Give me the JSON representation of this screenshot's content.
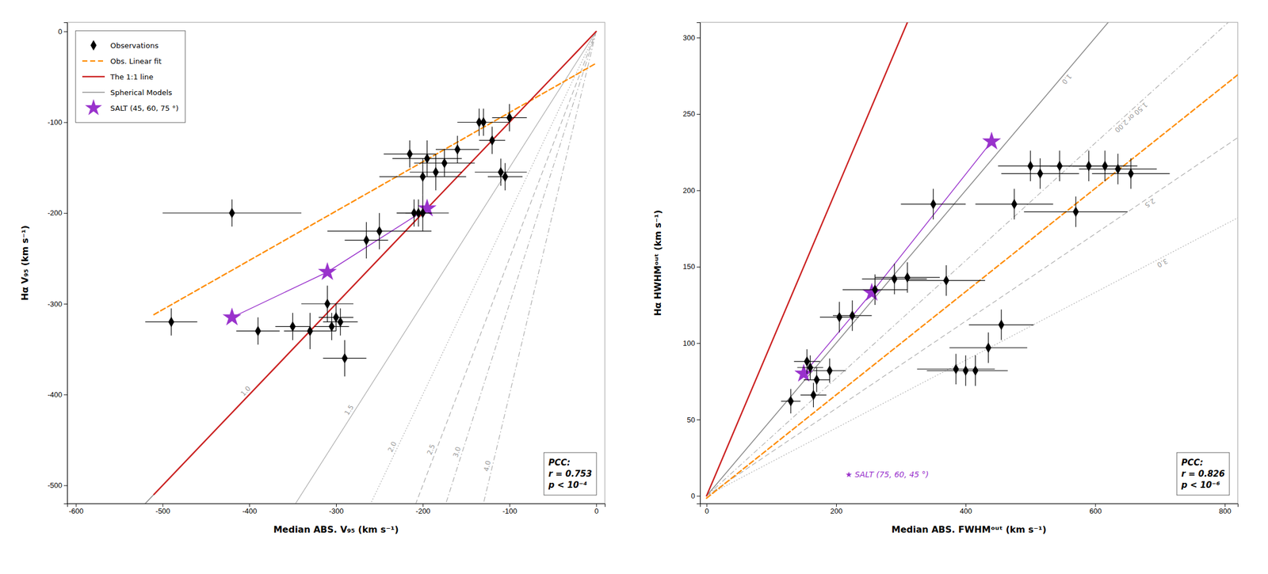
{
  "chart_data": [
    {
      "type": "scatter",
      "x_label": "Median ABS. V₉₅ (km s⁻¹)",
      "y_label": "Hα V₉₅ (km s⁻¹)",
      "xlim": [
        -610,
        10
      ],
      "ylim": [
        -520,
        10
      ],
      "xticks": [
        -600,
        -500,
        -400,
        -300,
        -200,
        -100,
        0
      ],
      "yticks": [
        -500,
        -400,
        -300,
        -200,
        -100,
        0
      ],
      "legend": "upper left",
      "series": [
        {
          "name": "Observations",
          "type": "scatter",
          "marker": "diamond",
          "color": "black",
          "x": [
            -490,
            -420,
            -390,
            -350,
            -330,
            -310,
            -305,
            -300,
            -295,
            -290,
            -265,
            -250,
            -215,
            -210,
            -205,
            -200,
            -200,
            -195,
            -185,
            -175,
            -160,
            -135,
            -130,
            -120,
            -110,
            -105,
            -100
          ],
          "values": [
            -320,
            -200,
            -330,
            -325,
            -330,
            -300,
            -325,
            -315,
            -320,
            -360,
            -230,
            -220,
            -135,
            -200,
            -200,
            -200,
            -160,
            -140,
            -155,
            -145,
            -130,
            -100,
            -100,
            -120,
            -155,
            -160,
            -95
          ],
          "x_error": [
            30,
            80,
            25,
            20,
            30,
            30,
            20,
            20,
            20,
            25,
            25,
            60,
            30,
            20,
            15,
            30,
            50,
            40,
            30,
            35,
            25,
            25,
            30,
            15,
            30,
            20,
            20
          ],
          "y_error": [
            15,
            15,
            15,
            15,
            20,
            20,
            15,
            15,
            15,
            20,
            20,
            20,
            15,
            15,
            15,
            20,
            20,
            20,
            20,
            15,
            15,
            15,
            15,
            15,
            15,
            15,
            15
          ]
        },
        {
          "name": "Obs. Linear fit",
          "type": "line",
          "line_style": "dashed",
          "color": "#FF8C00",
          "x": [
            -510,
            0
          ],
          "values": [
            -311.93,
            -35
          ]
        },
        {
          "name": "The 1:1 line",
          "type": "line",
          "line_style": "solid",
          "color": "#CC2222",
          "x": [
            -510,
            0
          ],
          "values": [
            -510,
            0
          ]
        },
        {
          "name": "Spherical Models",
          "type": "slope_lines",
          "lines": [
            {
              "slope": 1.0,
              "label": "1.0",
              "line_style": "solid",
              "color": "#888888",
              "label_x": -400
            },
            {
              "slope": 1.5,
              "label": "1.5",
              "line_style": "solid",
              "color": "#aaaaaa",
              "label_x": -280
            },
            {
              "slope": 2.0,
              "label": "2.0",
              "line_style": "dotted",
              "color": "#aaaaaa",
              "label_x": -230
            },
            {
              "slope": 2.5,
              "label": "2.5",
              "line_style": "dashed",
              "color": "#aaaaaa",
              "label_x": -185
            },
            {
              "slope": 3.0,
              "label": "3.0",
              "line_style": "dashdot",
              "color": "#aaaaaa",
              "label_x": -155
            },
            {
              "slope": 4.0,
              "label": "4.0",
              "line_style": "dashdot",
              "color": "#aaaaaa",
              "label_x": -120
            }
          ]
        },
        {
          "name": "SALT (45, 60, 75 °)",
          "type": "line",
          "marker": "star",
          "color": "#9932CC",
          "x": [
            -420,
            -310,
            -195
          ],
          "values": [
            -315,
            -265,
            -195
          ]
        }
      ],
      "annotations": [
        {
          "lines": [
            "PCC:",
            "r = 0.753",
            "p < 10⁻⁴"
          ]
        }
      ]
    },
    {
      "type": "scatter",
      "x_label": "Median ABS. FWHMᵒᵘᵗ (km s⁻¹)",
      "y_label": "Hα HWHMᵒᵘᵗ (km s⁻¹)",
      "xlim": [
        -10,
        820
      ],
      "ylim": [
        -5,
        310
      ],
      "xticks": [
        0,
        200,
        400,
        600,
        800
      ],
      "yticks": [
        0,
        50,
        100,
        150,
        200,
        250,
        300
      ],
      "series": [
        {
          "type": "scatter",
          "marker": "diamond",
          "color": "black",
          "x": [
            130,
            155,
            160,
            165,
            170,
            190,
            205,
            225,
            260,
            290,
            310,
            350,
            370,
            385,
            400,
            415,
            435,
            455,
            475,
            500,
            515,
            545,
            570,
            590,
            615,
            635,
            655
          ],
          "values": [
            62,
            88,
            84,
            66,
            76,
            82,
            117,
            118,
            135,
            142,
            143,
            191,
            141,
            83,
            82,
            82,
            97,
            112,
            191,
            216,
            211,
            216,
            186,
            216,
            216,
            214,
            211
          ],
          "x_error": [
            15,
            20,
            20,
            20,
            20,
            25,
            30,
            30,
            50,
            50,
            50,
            50,
            60,
            60,
            60,
            50,
            60,
            50,
            60,
            50,
            60,
            50,
            80,
            60,
            50,
            60,
            60
          ],
          "y_error": [
            8,
            8,
            8,
            8,
            8,
            8,
            10,
            10,
            10,
            10,
            10,
            10,
            10,
            10,
            10,
            10,
            10,
            10,
            10,
            10,
            10,
            10,
            10,
            10,
            10,
            10,
            10
          ]
        },
        {
          "type": "line",
          "line_style": "dashed",
          "color": "#FF8C00",
          "x": [
            0,
            820
          ],
          "values": [
            -1.5,
            275.66
          ]
        },
        {
          "type": "line",
          "line_style": "solid",
          "color": "#CC2222",
          "x": [
            0,
            310
          ],
          "values": [
            0,
            310
          ]
        },
        {
          "type": "slope_lines",
          "lines": [
            {
              "slope": 0.5,
              "label": "1.0",
              "line_style": "solid",
              "color": "#888888",
              "label_x": 550
            },
            {
              "slope": 0.385,
              "label": "1.50 or 2.00",
              "line_style": "dashdot",
              "color": "#aaaaaa",
              "label_x": 650
            },
            {
              "slope": 0.286,
              "label": "2.5",
              "line_style": "dashed",
              "color": "#aaaaaa",
              "label_x": 680
            },
            {
              "slope": 0.222,
              "label": "3.0",
              "line_style": "dotted",
              "color": "#aaaaaa",
              "label_x": 700
            }
          ]
        },
        {
          "type": "line",
          "marker": "star",
          "color": "#9932CC",
          "x": [
            150,
            255,
            440
          ],
          "values": [
            80,
            133,
            232
          ]
        }
      ],
      "annotations": [
        {
          "text": "★ SALT (75, 60, 45 °)",
          "color": "#9932CC"
        },
        {
          "lines": [
            "PCC:",
            "r = 0.826",
            "p < 10⁻⁶"
          ]
        }
      ]
    }
  ]
}
